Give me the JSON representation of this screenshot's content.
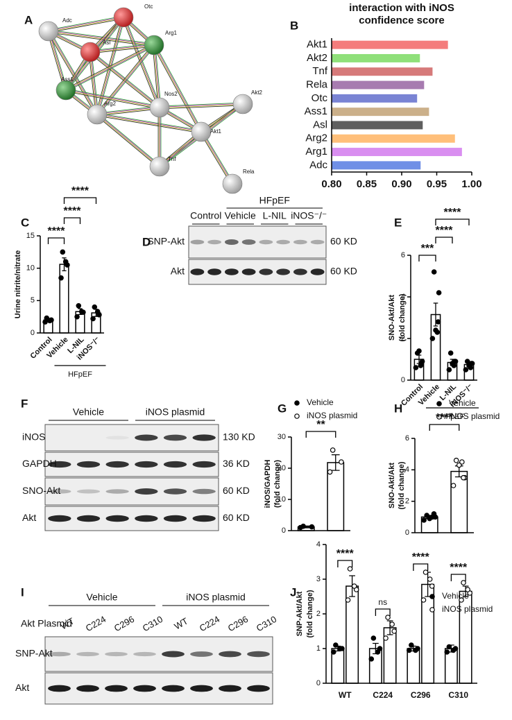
{
  "panels": [
    "A",
    "B",
    "C",
    "D",
    "E",
    "F",
    "G",
    "H",
    "I",
    "J"
  ],
  "network": {
    "nodes": [
      "Adc",
      "Otc",
      "Asl",
      "Arg1",
      "Ass1",
      "Arg2",
      "Nos2",
      "Akt2",
      "Akt1",
      "Tnf",
      "Rela"
    ]
  },
  "chart_data": [
    {
      "type": "barh",
      "title": [
        "interaction with iNOS",
        "confidence score"
      ],
      "categories": [
        "Akt1",
        "Akt2",
        "Tnf",
        "Rela",
        "Otc",
        "Ass1",
        "Asl",
        "Arg2",
        "Arg1",
        "Adc"
      ],
      "values": [
        0.966,
        0.926,
        0.944,
        0.932,
        0.922,
        0.939,
        0.93,
        0.976,
        0.986,
        0.927
      ],
      "colors": [
        "#f47c7c",
        "#8fe07a",
        "#d67a7a",
        "#a77bb0",
        "#7a84d4",
        "#cbb08a",
        "#5f5f5f",
        "#ffbf7a",
        "#d98ef0",
        "#6f8fe6"
      ],
      "xlim": [
        0.8,
        1.0
      ],
      "xticks": [
        {
          "value": 0.8,
          "label": "0.80"
        },
        {
          "value": 0.85,
          "label": "0.85"
        },
        {
          "value": 0.9,
          "label": "0.90"
        },
        {
          "value": 0.95,
          "label": "0.95"
        },
        {
          "value": 1.0,
          "label": "1.00"
        }
      ]
    },
    {
      "type": "bar",
      "ylabel": [
        "Urine nitrite/nitrate"
      ],
      "categories": [
        "Control",
        "Vehicle",
        "L-NIL",
        "iNOS⁻/⁻"
      ],
      "values": [
        2.0,
        10.6,
        3.3,
        3.1
      ],
      "errors": [
        0.25,
        1.0,
        0.45,
        0.55
      ],
      "points": [
        [
          1.7,
          2.0,
          2.3,
          1.9
        ],
        [
          8.5,
          10.5,
          12.5,
          11.0
        ],
        [
          2.5,
          3.2,
          4.2,
          3.3
        ],
        [
          2.2,
          2.8,
          4.0,
          3.3
        ]
      ],
      "marker": "filled",
      "ylim": [
        0,
        15
      ],
      "yticks": [
        0,
        5,
        10,
        15
      ],
      "group_label": "HFpEF",
      "significance": [
        {
          "pair": [
            "Control",
            "Vehicle"
          ],
          "label": "****"
        },
        {
          "pair": [
            "Vehicle",
            "L-NIL"
          ],
          "label": "****"
        },
        {
          "pair": [
            "Vehicle",
            "iNOS⁻/⁻"
          ],
          "label": "****"
        }
      ]
    },
    {
      "type": "bar",
      "ylabel": [
        "SNO-Akt/Akt",
        "(fold change)"
      ],
      "categories": [
        "Control",
        "Vehicle",
        "L-NIL",
        "iNOS⁻/⁻"
      ],
      "values": [
        1.0,
        3.15,
        0.85,
        0.75
      ],
      "errors": [
        0.2,
        0.55,
        0.15,
        0.1
      ],
      "points": [
        [
          0.6,
          0.9,
          1.3,
          0.7,
          1.4,
          0.8
        ],
        [
          2.0,
          4.2,
          5.2,
          2.3,
          2.4,
          2.8
        ],
        [
          0.5,
          0.9,
          1.3,
          0.7,
          0.8,
          0.9
        ],
        [
          0.5,
          0.8,
          0.9,
          0.6,
          0.7,
          0.8
        ]
      ],
      "marker": "filled",
      "ylim": [
        0,
        6
      ],
      "yticks": [
        0,
        2,
        4,
        6
      ],
      "group_label": "HFpEF",
      "significance": [
        {
          "pair": [
            "Control",
            "Vehicle"
          ],
          "label": "***"
        },
        {
          "pair": [
            "Vehicle",
            "L-NIL"
          ],
          "label": "****"
        },
        {
          "pair": [
            "Vehicle",
            "iNOS⁻/⁻"
          ],
          "label": "****"
        }
      ]
    },
    {
      "type": "bar",
      "ylabel": [
        "iNOS/GAPDH",
        "(fold change)"
      ],
      "series": [
        {
          "name": "Vehicle",
          "marker": "filled",
          "values": [
            1.2
          ],
          "errors": [
            0.3
          ],
          "points": [
            [
              1.0,
              1.2,
              1.4
            ]
          ]
        },
        {
          "name": "iNOS plasmid",
          "marker": "open",
          "values": [
            21.8
          ],
          "errors": [
            2.5
          ],
          "points": [
            [
              18.8,
              22.0,
              25.8
            ]
          ]
        }
      ],
      "ylim": [
        0,
        30
      ],
      "yticks": [
        0,
        10,
        20,
        30
      ],
      "significance": [
        {
          "pair": [
            "Vehicle",
            "iNOS plasmid"
          ],
          "label": "**"
        }
      ]
    },
    {
      "type": "bar",
      "ylabel": [
        "SNO-Akt/Akt",
        "(fold change)"
      ],
      "series": [
        {
          "name": "Vehicle",
          "marker": "filled",
          "values": [
            1.0
          ],
          "errors": [
            0.1
          ],
          "points": [
            [
              0.8,
              1.0,
              1.1,
              1.0,
              0.9,
              1.2
            ]
          ]
        },
        {
          "name": "iNOS plasmid",
          "marker": "open",
          "values": [
            3.9
          ],
          "errors": [
            0.35
          ],
          "points": [
            [
              3.0,
              3.5,
              4.6,
              4.5,
              4.3,
              3.5
            ]
          ]
        }
      ],
      "ylim": [
        0,
        6
      ],
      "yticks": [
        0,
        2,
        4,
        6
      ],
      "significance": [
        {
          "pair": [
            "Vehicle",
            "iNOS plasmid"
          ],
          "label": "****"
        }
      ]
    },
    {
      "type": "bar",
      "ylabel": [
        "SNP-Akt/Akt",
        "(fold change)"
      ],
      "categories": [
        "WT",
        "C224",
        "C296",
        "C310"
      ],
      "series": [
        {
          "name": "Vehicle",
          "marker": "filled",
          "values": [
            1.0,
            1.0,
            1.0,
            1.0
          ],
          "errors": [
            0.07,
            0.15,
            0.07,
            0.1
          ],
          "points": [
            [
              0.9,
              1.0,
              1.1,
              1.0
            ],
            [
              0.7,
              1.0,
              1.3,
              0.9
            ],
            [
              0.95,
              1.0,
              1.1,
              0.95
            ],
            [
              0.9,
              1.0,
              1.05,
              0.95
            ]
          ]
        },
        {
          "name": "iNOS plasmid",
          "marker": "open",
          "values": [
            2.8,
            1.6,
            2.85,
            2.65
          ],
          "errors": [
            0.3,
            0.2,
            0.35,
            0.15
          ],
          "points": [
            [
              2.4,
              2.7,
              3.3,
              2.8
            ],
            [
              1.3,
              1.5,
              1.9,
              1.7
            ],
            [
              2.4,
              2.8,
              3.2,
              3.0
            ],
            [
              2.4,
              2.6,
              2.9,
              2.7
            ]
          ]
        }
      ],
      "ylim": [
        0,
        4
      ],
      "yticks": [
        0,
        1,
        2,
        3,
        4
      ],
      "significance": [
        "****",
        "ns",
        "****",
        "****"
      ]
    }
  ],
  "blots": [
    {
      "header_top": "HFpEF",
      "header": [
        "Control",
        "Vehicle",
        "L-NIL",
        "iNOS⁻/⁻"
      ],
      "rows": [
        {
          "label": "SNP-Akt",
          "size": "60 KD"
        },
        {
          "label": "Akt",
          "size": "60 KD"
        }
      ]
    },
    {
      "header": [
        "Vehicle",
        "iNOS plasmid"
      ],
      "rows": [
        {
          "label": "iNOS",
          "size": "130 KD"
        },
        {
          "label": "GAPDH",
          "size": "36 KD"
        },
        {
          "label": "SNO-Akt",
          "size": "60 KD"
        },
        {
          "label": "Akt",
          "size": "60 KD"
        }
      ]
    },
    {
      "header": [
        "Vehicle",
        "iNOS plasmid"
      ],
      "lane_title": "Akt Plasmid",
      "lanes": [
        "WT",
        "C224",
        "C296",
        "C310",
        "WT",
        "C224",
        "C296",
        "C310"
      ],
      "rows": [
        {
          "label": "SNP-Akt"
        },
        {
          "label": "Akt"
        }
      ]
    }
  ]
}
